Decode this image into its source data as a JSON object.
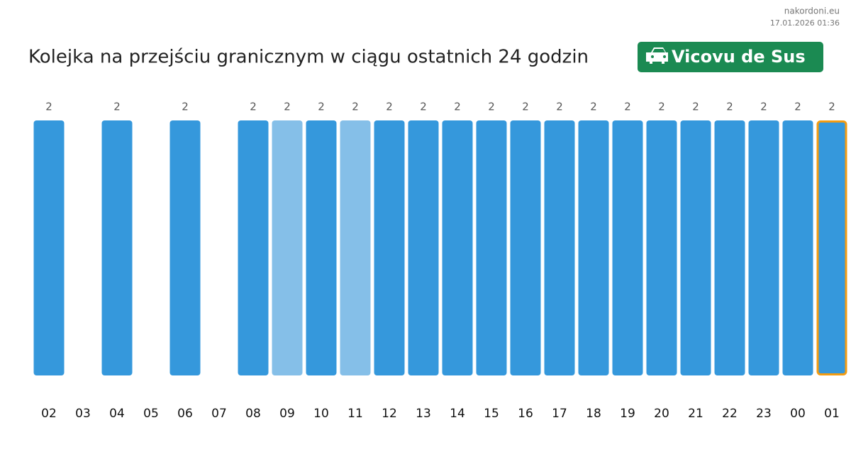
{
  "chart_data": {
    "type": "bar",
    "title": "Kolejka na przejściu granicznym w ciągu ostatnich 24 godzin",
    "badge": "Vicovu de Sus",
    "site": "nakordoni.eu",
    "timestamp": "17.01.2026 01:36",
    "categories": [
      "02",
      "03",
      "04",
      "05",
      "06",
      "07",
      "08",
      "09",
      "10",
      "11",
      "12",
      "13",
      "14",
      "15",
      "16",
      "17",
      "18",
      "19",
      "20",
      "21",
      "22",
      "23",
      "00",
      "01"
    ],
    "values": [
      2,
      null,
      2,
      null,
      2,
      null,
      2,
      2,
      2,
      2,
      2,
      2,
      2,
      2,
      2,
      2,
      2,
      2,
      2,
      2,
      2,
      2,
      2,
      2
    ],
    "colors": [
      "#3598dc",
      null,
      "#3598dc",
      null,
      "#3598dc",
      null,
      "#3598dc",
      "#85bfe8",
      "#3598dc",
      "#85bfe8",
      "#3598dc",
      "#3598dc",
      "#3598dc",
      "#3598dc",
      "#3598dc",
      "#3598dc",
      "#3598dc",
      "#3598dc",
      "#3598dc",
      "#3598dc",
      "#3598dc",
      "#3598dc",
      "#3598dc",
      "#3598dc"
    ],
    "border_colors": [
      null,
      null,
      null,
      null,
      null,
      null,
      null,
      null,
      null,
      null,
      null,
      null,
      null,
      null,
      null,
      null,
      null,
      null,
      null,
      null,
      null,
      null,
      null,
      "#f39c12"
    ],
    "ylim": [
      0,
      2
    ]
  }
}
